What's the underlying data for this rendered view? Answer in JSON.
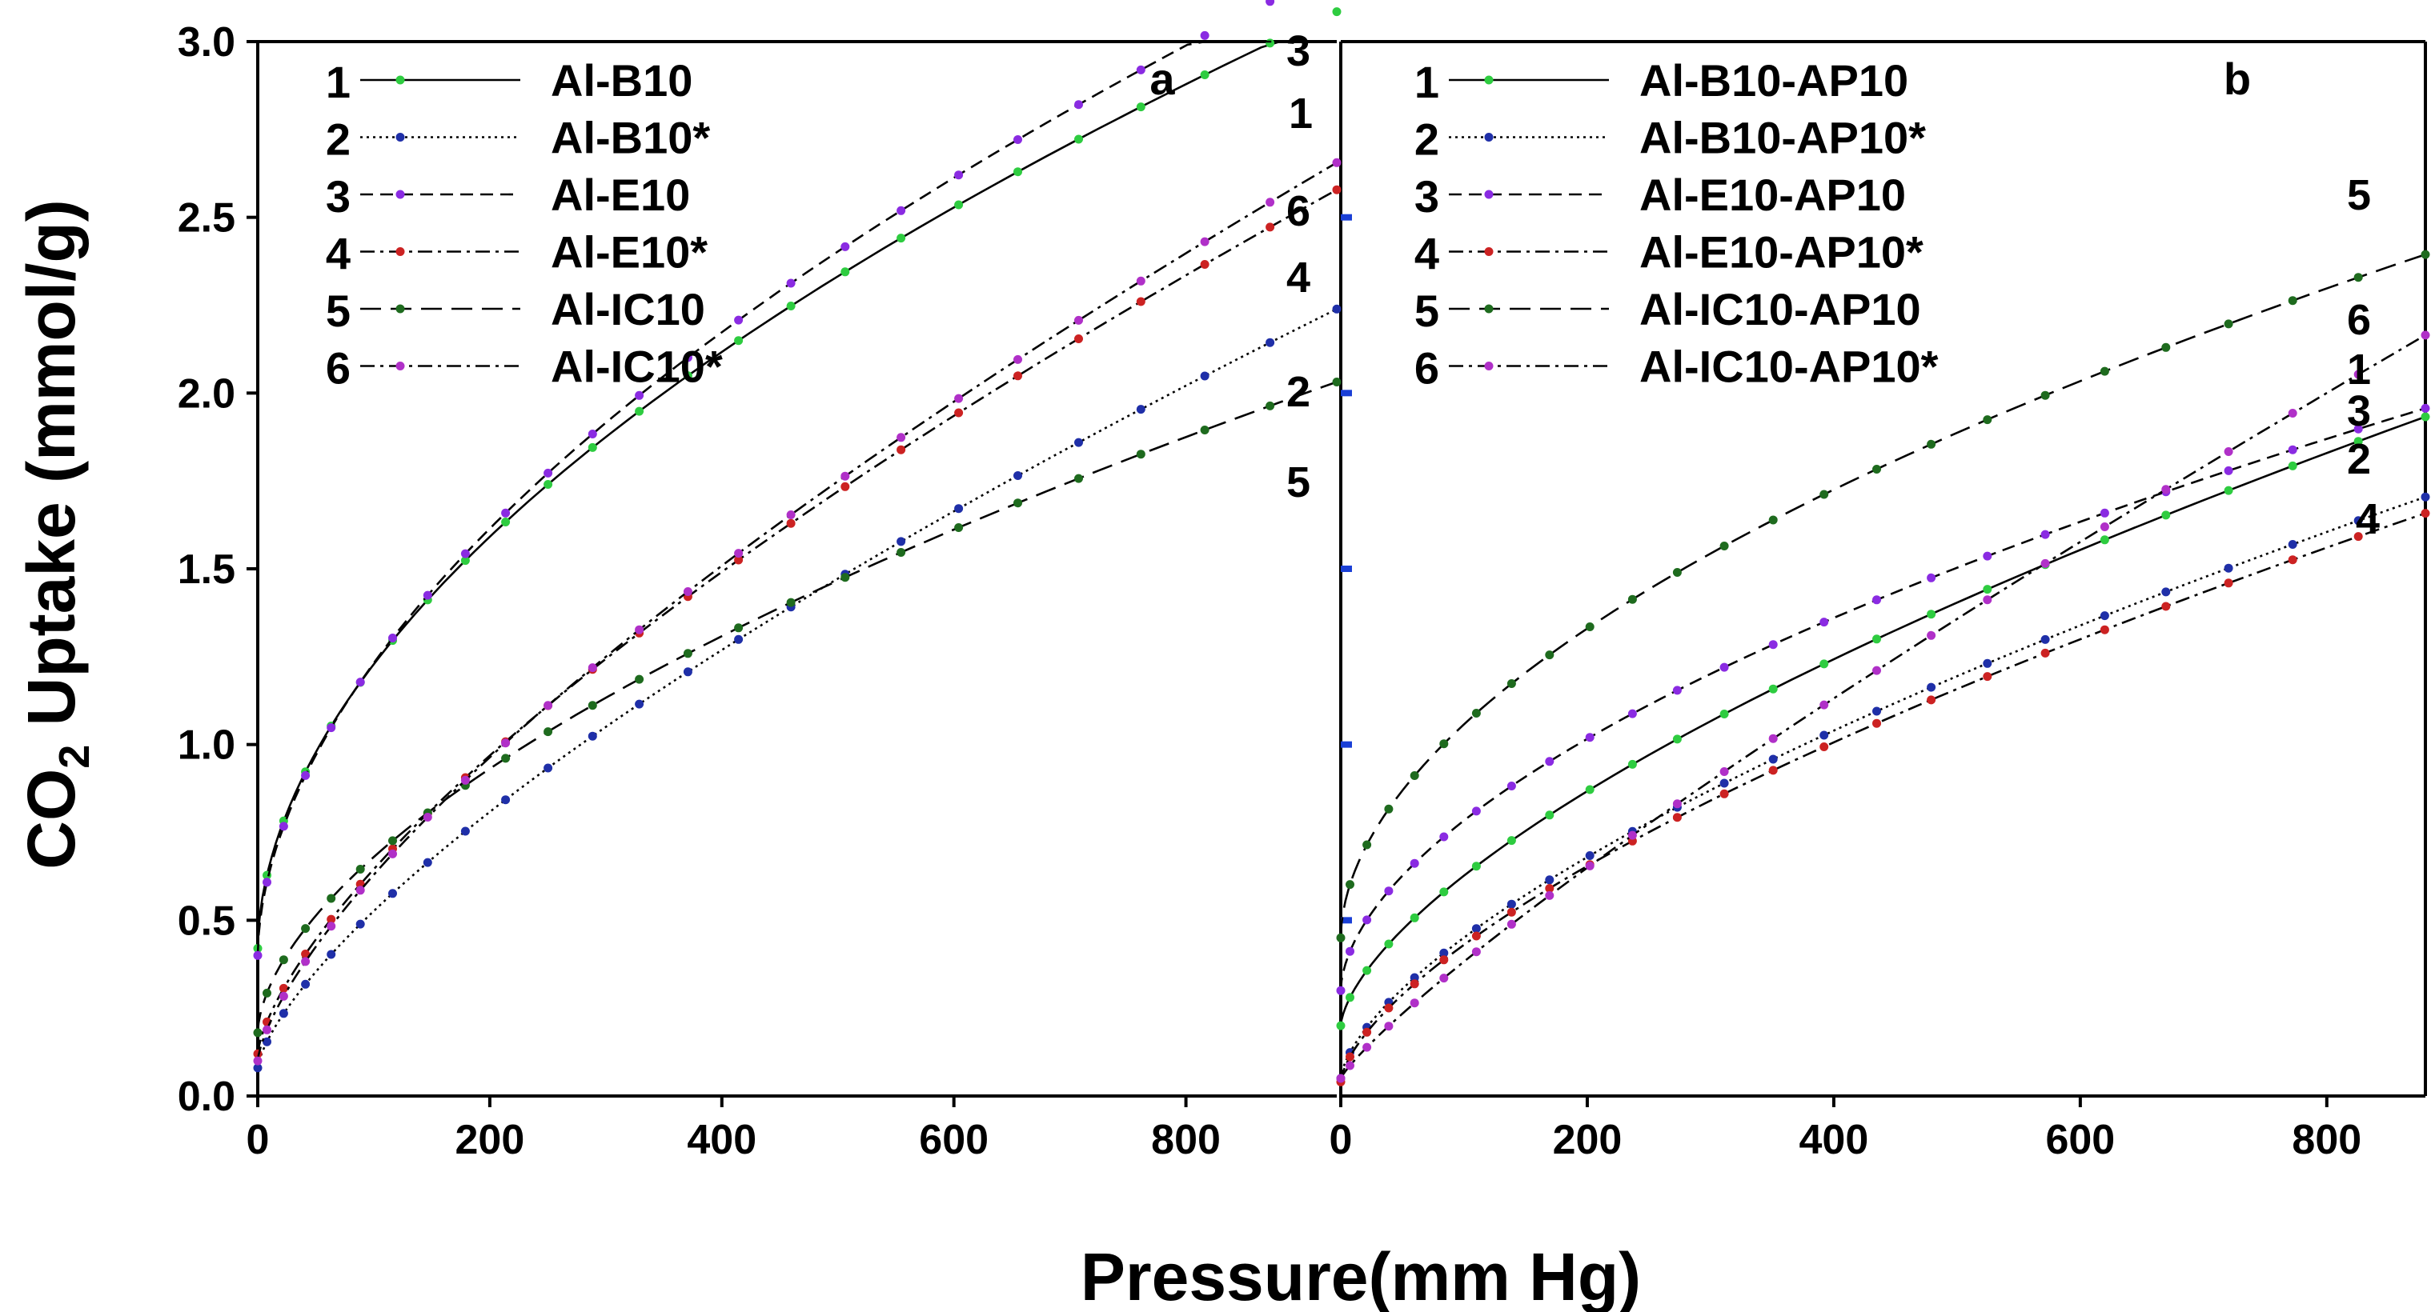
{
  "chart_data": [
    {
      "panel": "a",
      "type": "line",
      "xlabel": "Pressure(mm Hg)",
      "ylabel": "CO2 Uptake (mmol/g)",
      "xlim": [
        0,
        930
      ],
      "ylim": [
        0,
        3.0
      ],
      "xticks": [
        0,
        200,
        400,
        600,
        800
      ],
      "yticks": [
        0.0,
        0.5,
        1.0,
        1.5,
        2.0,
        2.5,
        3.0
      ],
      "ytick_labels": [
        "0.0",
        "0.5",
        "1.0",
        "1.5",
        "2.0",
        "2.5",
        "3.0"
      ],
      "legend_position": "top-left",
      "series": [
        {
          "id": "1",
          "name": "Al-B10",
          "color": "#2ecc40",
          "dash": "solid",
          "b": 0.42,
          "k": 0.0688,
          "n": 0.535,
          "end_label": "1"
        },
        {
          "id": "2",
          "name": "Al-B10*",
          "color": "#1f2fa8",
          "dash": "dot",
          "b": 0.08,
          "k": 0.0172,
          "n": 0.707,
          "end_label": "2"
        },
        {
          "id": "3",
          "name": "Al-E10",
          "color": "#8a2be2",
          "dash": "dash",
          "b": 0.4,
          "k": 0.0673,
          "n": 0.546,
          "end_label": "3"
        },
        {
          "id": "4",
          "name": "Al-E10*",
          "color": "#cc2222",
          "dash": "dashdot",
          "b": 0.12,
          "k": 0.0217,
          "n": 0.692,
          "end_label": "4"
        },
        {
          "id": "5",
          "name": "Al-IC10",
          "color": "#1e6b1e",
          "dash": "longdash",
          "b": 0.18,
          "k": 0.0335,
          "n": 0.587,
          "end_label": "5"
        },
        {
          "id": "6",
          "name": "Al-IC10*",
          "color": "#b030c8",
          "dash": "dashdot",
          "b": 0.1,
          "k": 0.0205,
          "n": 0.706,
          "end_label": "6"
        }
      ]
    },
    {
      "panel": "b",
      "type": "line",
      "xlabel": "Pressure(mm Hg)",
      "ylabel": "CO2 Uptake (mmol/g)",
      "xlim": [
        0,
        880
      ],
      "ylim": [
        0,
        3.0
      ],
      "xticks": [
        0,
        200,
        400,
        600,
        800
      ],
      "yticks": [
        0.0,
        0.5,
        1.0,
        1.5,
        2.0,
        2.5,
        3.0
      ],
      "legend_position": "top-left",
      "series": [
        {
          "id": "1",
          "name": "Al-B10-AP10",
          "color": "#2ecc40",
          "dash": "solid",
          "b": 0.2,
          "k": 0.022,
          "n": 0.644,
          "end_label": "1"
        },
        {
          "id": "2",
          "name": "Al-B10-AP10*",
          "color": "#1f2fa8",
          "dash": "dot",
          "b": 0.05,
          "k": 0.0199,
          "n": 0.652,
          "end_label": "2"
        },
        {
          "id": "3",
          "name": "Al-E10-AP10",
          "color": "#8a2be2",
          "dash": "dash",
          "b": 0.3,
          "k": 0.0357,
          "n": 0.566,
          "end_label": "3"
        },
        {
          "id": "4",
          "name": "Al-E10-AP10*",
          "color": "#cc2222",
          "dash": "dashdot",
          "b": 0.04,
          "k": 0.0192,
          "n": 0.654,
          "end_label": "4"
        },
        {
          "id": "5",
          "name": "Al-IC10-AP10",
          "color": "#1e6b1e",
          "dash": "longdash",
          "b": 0.45,
          "k": 0.0517,
          "n": 0.535,
          "end_label": "5"
        },
        {
          "id": "6",
          "name": "Al-IC10-AP10*",
          "color": "#b030c8",
          "dash": "dashdot",
          "b": 0.05,
          "k": 0.0066,
          "n": 0.851,
          "end_label": "6"
        }
      ]
    }
  ]
}
